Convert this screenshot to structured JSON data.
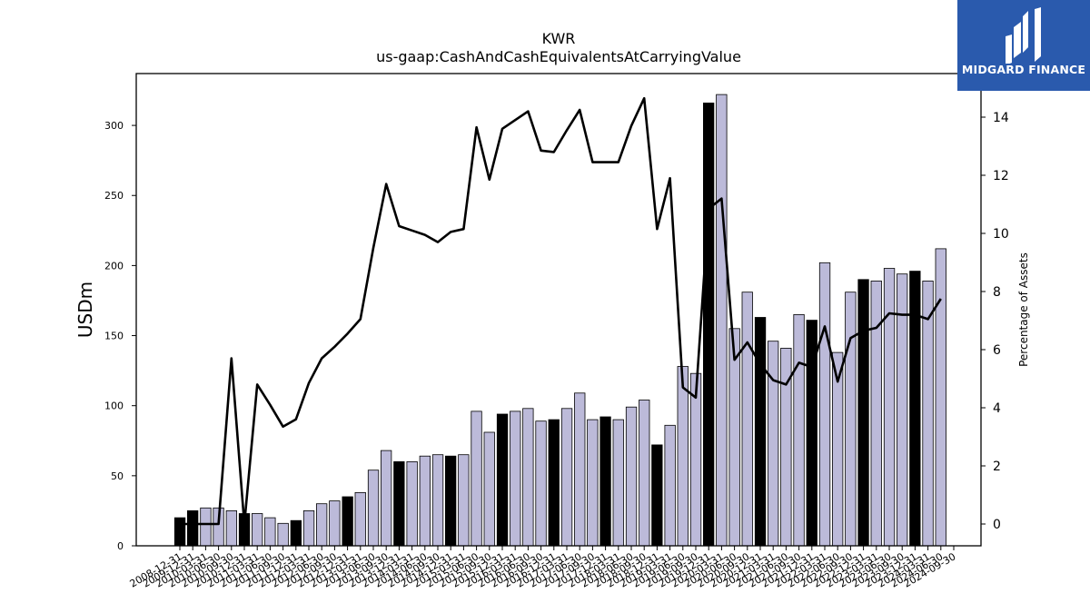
{
  "brand": {
    "name": "MIDGARD FINANCE",
    "logo_icon": "midgard-m-logo-icon",
    "background_color": "#2a5aad"
  },
  "chart_data": {
    "type": "bar",
    "title": "KWR",
    "subtitle": "us-gaap:CashAndCashEquivalentsAtCarryingValue",
    "ylabel": "USDm",
    "y2label": "Percentage of Assets",
    "ylim": [
      0,
      337
    ],
    "y2lim": [
      -0.75,
      15.5
    ],
    "yticks": [
      0,
      50,
      100,
      150,
      200,
      250,
      300
    ],
    "y2ticks": [
      0,
      2,
      4,
      6,
      8,
      10,
      12,
      14
    ],
    "grid": false,
    "legend": "none",
    "colors": {
      "annual_bar": "#000000",
      "quarter_bar": "#bcbad9",
      "line": "#000000"
    },
    "categories": [
      "2008-12-31",
      "2009-12-31",
      "2010-03-31",
      "2010-06-30",
      "2010-09-30",
      "2010-12-31",
      "2011-03-31",
      "2011-06-30",
      "2011-09-30",
      "2011-12-31",
      "2012-03-31",
      "2012-06-30",
      "2012-09-30",
      "2012-12-31",
      "2013-03-31",
      "2013-06-30",
      "2013-09-30",
      "2013-12-31",
      "2014-03-31",
      "2014-06-30",
      "2014-09-30",
      "2014-12-31",
      "2015-03-31",
      "2015-06-30",
      "2015-09-30",
      "2015-12-31",
      "2016-03-31",
      "2016-06-30",
      "2016-09-30",
      "2016-12-31",
      "2017-03-31",
      "2017-06-30",
      "2017-09-30",
      "2017-12-31",
      "2018-03-31",
      "2018-06-30",
      "2018-09-30",
      "2018-12-31",
      "2019-03-31",
      "2019-06-30",
      "2019-09-30",
      "2019-12-31",
      "2020-03-31",
      "2020-06-30",
      "2020-09-30",
      "2020-12-31",
      "2021-03-31",
      "2021-06-30",
      "2021-09-30",
      "2021-12-31",
      "2022-03-31",
      "2022-06-30",
      "2022-09-30",
      "2022-12-31",
      "2023-03-31",
      "2023-06-30",
      "2023-09-30",
      "2023-12-31",
      "2024-03-31",
      "2024-06-30",
      "2024-09-30"
    ],
    "annual": [
      true,
      true,
      false,
      false,
      false,
      true,
      false,
      false,
      false,
      true,
      false,
      false,
      false,
      true,
      false,
      false,
      false,
      true,
      false,
      false,
      false,
      true,
      false,
      false,
      false,
      true,
      false,
      false,
      false,
      true,
      false,
      false,
      false,
      true,
      false,
      false,
      false,
      true,
      false,
      false,
      false,
      true,
      false,
      false,
      false,
      true,
      false,
      false,
      false,
      true,
      false,
      false,
      false,
      true,
      false,
      false,
      false,
      true,
      false,
      false,
      false
    ],
    "values": [
      20,
      25,
      27,
      27,
      25,
      23,
      23,
      20,
      16,
      18,
      25,
      30,
      32,
      35,
      38,
      54,
      68,
      60,
      60,
      64,
      65,
      64,
      65,
      96,
      81,
      94,
      96,
      98,
      89,
      90,
      98,
      109,
      90,
      92,
      90,
      99,
      104,
      72,
      86,
      128,
      123,
      316,
      322,
      155,
      181,
      163,
      146,
      141,
      165,
      161,
      202,
      138,
      181,
      190,
      189,
      198,
      194,
      196,
      189,
      212,
      0
    ],
    "percent_of_assets": [
      0.0,
      0.0,
      0.0,
      0.0,
      5.7,
      0.0,
      4.8,
      4.1,
      3.35,
      3.6,
      4.85,
      5.7,
      6.1,
      6.55,
      7.05,
      9.5,
      11.7,
      10.25,
      10.1,
      9.95,
      9.7,
      10.05,
      10.15,
      13.65,
      11.85,
      13.6,
      13.9,
      14.2,
      12.85,
      12.8,
      13.55,
      14.25,
      12.45,
      12.45,
      12.45,
      13.7,
      14.65,
      10.15,
      11.9,
      4.7,
      4.35,
      10.85,
      11.2,
      5.65,
      6.25,
      5.5,
      4.95,
      4.8,
      5.55,
      5.4,
      6.8,
      4.9,
      6.4,
      6.65,
      6.75,
      7.25,
      7.2,
      7.2,
      7.05,
      7.75,
      null
    ]
  }
}
